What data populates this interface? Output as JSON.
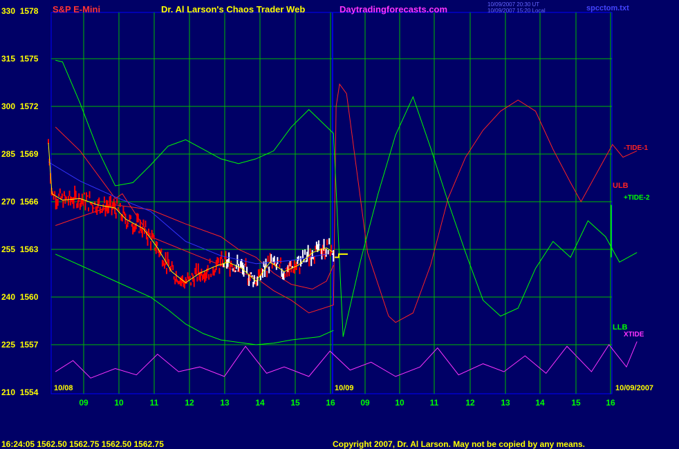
{
  "header": {
    "left_title": "S&P E-Mini",
    "center_title": "Dr. Al Larson's Chaos Trader Web",
    "site": "Daytradingforecasts.com",
    "small_line1": "10/09/2007 20:30 UT",
    "small_line2": "10/09/2007 15:20 Local",
    "file": "spcctom.txt"
  },
  "footer": {
    "quote": "16:24:05  1562.50  1562.75  1562.50  1562.75",
    "copyright": "Copyright 2007, Dr. Al Larson. May not be copied by any means."
  },
  "dates": {
    "left": "10/08",
    "middle": "10/09",
    "right": "10/09/2007"
  },
  "labels": {
    "tide1": "-TIDE-1",
    "ulb": "ULB",
    "tide2": "+TIDE-2",
    "llb": "LLB",
    "xtide": "XTIDE"
  },
  "colors": {
    "background": "#000066",
    "grid": "#00bb00",
    "price_red": "#ff0000",
    "price_white": "#ffffff",
    "forecast": "#ffff00",
    "avg_blue": "#3333ff",
    "avg_yellow": "#ffff00",
    "band_red": "#ff2222",
    "green": "#00ff00",
    "magenta": "#ff33ff"
  },
  "chart_data": {
    "type": "line",
    "title": "S&P E-Mini",
    "y_left_ticks": [
      "330",
      "315",
      "300",
      "285",
      "270",
      "255",
      "240",
      "225",
      "210"
    ],
    "y_right_ticks": [
      "1578",
      "1575",
      "1572",
      "1569",
      "1566",
      "1563",
      "1560",
      "1557",
      "1554"
    ],
    "ylim": [
      1554,
      1578
    ],
    "x_ticks": [
      "09",
      "10",
      "11",
      "12",
      "13",
      "14",
      "15",
      "16",
      "09",
      "10",
      "11",
      "12",
      "13",
      "14",
      "15",
      "16"
    ],
    "grid": true,
    "series": [
      {
        "name": "ULB",
        "color": "#ff2222",
        "points": [
          [
            8.3,
            1564.5
          ],
          [
            9.2,
            1565.2
          ],
          [
            10,
            1565.8
          ],
          [
            11,
            1565.5
          ],
          [
            12,
            1564.6
          ],
          [
            13,
            1563.8
          ],
          [
            13.5,
            1563.0
          ],
          [
            14,
            1562.5
          ],
          [
            14.5,
            1561.5
          ],
          [
            15,
            1560.8
          ],
          [
            15.6,
            1560.5
          ],
          [
            16,
            1561.0
          ],
          [
            16.2,
            1562.0
          ]
        ]
      },
      {
        "name": "LLB",
        "color": "#00ff00",
        "points": [
          [
            8.3,
            1562.7
          ],
          [
            9,
            1562
          ],
          [
            10,
            1561
          ],
          [
            11,
            1560
          ],
          [
            11.5,
            1559.2
          ],
          [
            12,
            1558.3
          ],
          [
            12.5,
            1557.7
          ],
          [
            13,
            1557.3
          ],
          [
            14,
            1557.0
          ],
          [
            14.5,
            1557.1
          ],
          [
            15,
            1557.3
          ],
          [
            15.8,
            1557.5
          ],
          [
            16.2,
            1557.9
          ]
        ]
      },
      {
        "name": "-TIDE-1",
        "color": "#ff2222",
        "points": [
          [
            8.3,
            1570.7
          ],
          [
            9,
            1569.2
          ],
          [
            10,
            1566.2
          ],
          [
            10.2,
            1566.5
          ],
          [
            11,
            1563.8
          ],
          [
            12,
            1562.9
          ],
          [
            13,
            1562.0
          ],
          [
            14,
            1561.2
          ],
          [
            14.5,
            1560.4
          ],
          [
            15,
            1559.8
          ],
          [
            15.5,
            1559.0
          ],
          [
            16.2,
            1559.5
          ],
          [
            16.3,
            1572.0
          ],
          [
            16.4,
            1573.4
          ],
          [
            16.6,
            1572.8
          ],
          [
            17.2,
            1562.8
          ],
          [
            17.8,
            1558.8
          ],
          [
            18,
            1558.4
          ],
          [
            18.5,
            1559.0
          ],
          [
            19,
            1562.0
          ],
          [
            19.5,
            1566.2
          ],
          [
            20,
            1568.8
          ],
          [
            20.5,
            1570.5
          ],
          [
            21,
            1571.7
          ],
          [
            21.5,
            1572.4
          ],
          [
            22,
            1571.7
          ],
          [
            22.5,
            1569.3
          ],
          [
            23,
            1567.2
          ],
          [
            23.3,
            1566.0
          ],
          [
            23.8,
            1568.0
          ],
          [
            24.2,
            1569.6
          ],
          [
            24.5,
            1568.8
          ],
          [
            24.9,
            1569.2
          ]
        ]
      },
      {
        "name": "+TIDE-2",
        "color": "#00ff00",
        "points": [
          [
            8.3,
            1574.9
          ],
          [
            8.5,
            1574.8
          ],
          [
            9,
            1572.2
          ],
          [
            9.5,
            1569.3
          ],
          [
            10,
            1567.0
          ],
          [
            10.5,
            1567.2
          ],
          [
            11,
            1568.3
          ],
          [
            11.5,
            1569.5
          ],
          [
            12,
            1569.9
          ],
          [
            12.5,
            1569.3
          ],
          [
            13,
            1568.7
          ],
          [
            13.5,
            1568.4
          ],
          [
            14,
            1568.7
          ],
          [
            14.5,
            1569.2
          ],
          [
            15,
            1570.7
          ],
          [
            15.5,
            1571.8
          ],
          [
            16.2,
            1570.3
          ],
          [
            16.5,
            1557.5
          ],
          [
            17,
            1562.3
          ],
          [
            17.5,
            1566.5
          ],
          [
            18,
            1570.2
          ],
          [
            18.5,
            1572.6
          ],
          [
            19,
            1569.4
          ],
          [
            19.5,
            1566.0
          ],
          [
            20,
            1562.8
          ],
          [
            20.5,
            1559.8
          ],
          [
            21,
            1558.8
          ],
          [
            21.5,
            1559.3
          ],
          [
            22,
            1561.8
          ],
          [
            22.5,
            1563.5
          ],
          [
            23,
            1562.5
          ],
          [
            23.5,
            1564.8
          ],
          [
            24,
            1563.8
          ],
          [
            24.4,
            1562.2
          ],
          [
            24.9,
            1562.8
          ]
        ]
      },
      {
        "name": "XTIDE",
        "color": "#ff33ff",
        "points": [
          [
            8.3,
            1555.3
          ],
          [
            8.8,
            1556.0
          ],
          [
            9.3,
            1554.9
          ],
          [
            10,
            1555.5
          ],
          [
            10.6,
            1555.1
          ],
          [
            11.2,
            1556.4
          ],
          [
            11.8,
            1555.3
          ],
          [
            12.4,
            1555.6
          ],
          [
            13.1,
            1555.0
          ],
          [
            13.7,
            1556.9
          ],
          [
            14.3,
            1555.2
          ],
          [
            14.8,
            1555.6
          ],
          [
            15.5,
            1555.0
          ],
          [
            16.1,
            1556.6
          ],
          [
            16.7,
            1555.4
          ],
          [
            17.3,
            1555.9
          ],
          [
            18,
            1555.0
          ],
          [
            18.7,
            1555.6
          ],
          [
            19.2,
            1556.8
          ],
          [
            19.8,
            1555.1
          ],
          [
            20.5,
            1555.8
          ],
          [
            21.1,
            1555.3
          ],
          [
            21.7,
            1556.3
          ],
          [
            22.3,
            1555.2
          ],
          [
            22.9,
            1556.9
          ],
          [
            23.6,
            1555.3
          ],
          [
            24.1,
            1557.0
          ],
          [
            24.6,
            1555.6
          ],
          [
            24.9,
            1557.2
          ]
        ]
      }
    ],
    "price_white_segment": {
      "from_hour": 13.0,
      "to_hour": 16.2
    },
    "last_price": 1562.75
  }
}
